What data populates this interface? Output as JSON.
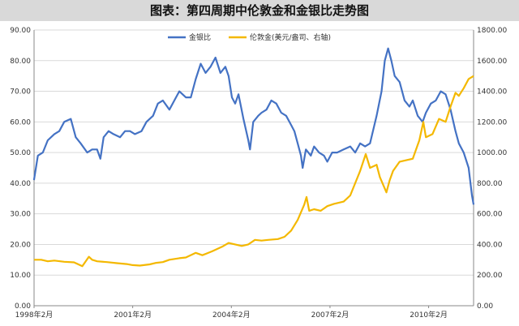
{
  "header": {
    "title": "图表：第四周期中伦敦金和金银比走势图"
  },
  "chart_data": {
    "type": "line",
    "title": "图表：第四周期中伦敦金和金银比走势图",
    "x_ticks": [
      "1998年2月",
      "2001年2月",
      "2004年2月",
      "2007年2月",
      "2010年2月"
    ],
    "x_tick_years": [
      1998.083,
      2001.083,
      2004.083,
      2007.083,
      2010.083
    ],
    "xlim": [
      1998.083,
      2011.45
    ],
    "left_axis": {
      "ticks": [
        "0.00",
        "10.00",
        "20.00",
        "30.00",
        "40.00",
        "50.00",
        "60.00",
        "70.00",
        "80.00",
        "90.00"
      ],
      "ylim": [
        0,
        90
      ]
    },
    "right_axis": {
      "ticks": [
        "0.00",
        "200.00",
        "400.00",
        "600.00",
        "800.00",
        "1000.00",
        "1200.00",
        "1400.00",
        "1600.00",
        "1800.00"
      ],
      "ylim": [
        0,
        1800
      ]
    },
    "grid": true,
    "legend_position": "top",
    "series": [
      {
        "name": "金银比",
        "axis": "left",
        "color": "#4472c4",
        "points": [
          [
            1998.08,
            41
          ],
          [
            1998.2,
            49
          ],
          [
            1998.35,
            50
          ],
          [
            1998.5,
            54
          ],
          [
            1998.7,
            56
          ],
          [
            1998.85,
            57
          ],
          [
            1999.0,
            60
          ],
          [
            1999.2,
            61
          ],
          [
            1999.35,
            55
          ],
          [
            1999.5,
            53
          ],
          [
            1999.7,
            50
          ],
          [
            1999.85,
            51
          ],
          [
            2000.0,
            51
          ],
          [
            2000.1,
            48
          ],
          [
            2000.2,
            55
          ],
          [
            2000.35,
            57
          ],
          [
            2000.5,
            56
          ],
          [
            2000.7,
            55
          ],
          [
            2000.85,
            57
          ],
          [
            2001.0,
            57
          ],
          [
            2001.15,
            56
          ],
          [
            2001.35,
            57
          ],
          [
            2001.5,
            60
          ],
          [
            2001.7,
            62
          ],
          [
            2001.85,
            66
          ],
          [
            2002.0,
            67
          ],
          [
            2002.2,
            64
          ],
          [
            2002.35,
            67
          ],
          [
            2002.5,
            70
          ],
          [
            2002.7,
            68
          ],
          [
            2002.85,
            68
          ],
          [
            2003.0,
            74
          ],
          [
            2003.15,
            79
          ],
          [
            2003.3,
            76
          ],
          [
            2003.45,
            78
          ],
          [
            2003.6,
            81
          ],
          [
            2003.75,
            76
          ],
          [
            2003.9,
            78
          ],
          [
            2004.0,
            75
          ],
          [
            2004.1,
            68
          ],
          [
            2004.2,
            66
          ],
          [
            2004.3,
            69
          ],
          [
            2004.45,
            61
          ],
          [
            2004.6,
            54
          ],
          [
            2004.65,
            51
          ],
          [
            2004.75,
            60
          ],
          [
            2004.9,
            62
          ],
          [
            2005.0,
            63
          ],
          [
            2005.15,
            64
          ],
          [
            2005.3,
            67
          ],
          [
            2005.45,
            66
          ],
          [
            2005.6,
            63
          ],
          [
            2005.75,
            62
          ],
          [
            2005.9,
            59
          ],
          [
            2006.0,
            57
          ],
          [
            2006.1,
            53
          ],
          [
            2006.2,
            49
          ],
          [
            2006.25,
            45
          ],
          [
            2006.35,
            51
          ],
          [
            2006.5,
            49
          ],
          [
            2006.6,
            52
          ],
          [
            2006.75,
            50
          ],
          [
            2006.9,
            49
          ],
          [
            2007.0,
            47
          ],
          [
            2007.15,
            50
          ],
          [
            2007.3,
            50
          ],
          [
            2007.5,
            51
          ],
          [
            2007.7,
            52
          ],
          [
            2007.85,
            50
          ],
          [
            2008.0,
            53
          ],
          [
            2008.15,
            52
          ],
          [
            2008.3,
            53
          ],
          [
            2008.5,
            62
          ],
          [
            2008.65,
            70
          ],
          [
            2008.75,
            80
          ],
          [
            2008.85,
            84
          ],
          [
            2008.95,
            80
          ],
          [
            2009.05,
            75
          ],
          [
            2009.2,
            73
          ],
          [
            2009.35,
            67
          ],
          [
            2009.5,
            65
          ],
          [
            2009.6,
            67
          ],
          [
            2009.75,
            62
          ],
          [
            2009.9,
            60
          ],
          [
            2010.0,
            63
          ],
          [
            2010.15,
            66
          ],
          [
            2010.3,
            67
          ],
          [
            2010.45,
            70
          ],
          [
            2010.6,
            69
          ],
          [
            2010.75,
            64
          ],
          [
            2010.9,
            57
          ],
          [
            2011.0,
            53
          ],
          [
            2011.15,
            50
          ],
          [
            2011.3,
            45
          ],
          [
            2011.4,
            36
          ],
          [
            2011.45,
            33
          ]
        ]
      },
      {
        "name": "伦敦金(美元/盎司、右轴)",
        "axis": "right",
        "color": "#f4b800",
        "points": [
          [
            1998.08,
            300
          ],
          [
            1998.3,
            300
          ],
          [
            1998.5,
            290
          ],
          [
            1998.7,
            295
          ],
          [
            1999.0,
            287
          ],
          [
            1999.3,
            283
          ],
          [
            1999.55,
            258
          ],
          [
            1999.75,
            320
          ],
          [
            1999.85,
            300
          ],
          [
            2000.0,
            290
          ],
          [
            2000.3,
            285
          ],
          [
            2000.6,
            278
          ],
          [
            2000.9,
            272
          ],
          [
            2001.08,
            265
          ],
          [
            2001.3,
            262
          ],
          [
            2001.6,
            270
          ],
          [
            2001.8,
            280
          ],
          [
            2002.0,
            285
          ],
          [
            2002.2,
            300
          ],
          [
            2002.5,
            310
          ],
          [
            2002.7,
            315
          ],
          [
            2003.0,
            345
          ],
          [
            2003.2,
            330
          ],
          [
            2003.5,
            355
          ],
          [
            2003.8,
            385
          ],
          [
            2004.0,
            410
          ],
          [
            2004.2,
            400
          ],
          [
            2004.4,
            390
          ],
          [
            2004.6,
            400
          ],
          [
            2004.8,
            430
          ],
          [
            2005.0,
            425
          ],
          [
            2005.2,
            430
          ],
          [
            2005.5,
            435
          ],
          [
            2005.7,
            450
          ],
          [
            2005.9,
            490
          ],
          [
            2006.1,
            560
          ],
          [
            2006.3,
            660
          ],
          [
            2006.37,
            710
          ],
          [
            2006.45,
            620
          ],
          [
            2006.6,
            630
          ],
          [
            2006.8,
            620
          ],
          [
            2007.0,
            650
          ],
          [
            2007.2,
            665
          ],
          [
            2007.5,
            680
          ],
          [
            2007.7,
            720
          ],
          [
            2007.85,
            800
          ],
          [
            2008.0,
            880
          ],
          [
            2008.17,
            990
          ],
          [
            2008.3,
            900
          ],
          [
            2008.5,
            920
          ],
          [
            2008.6,
            840
          ],
          [
            2008.8,
            740
          ],
          [
            2008.9,
            820
          ],
          [
            2009.0,
            880
          ],
          [
            2009.2,
            940
          ],
          [
            2009.4,
            950
          ],
          [
            2009.6,
            960
          ],
          [
            2009.8,
            1080
          ],
          [
            2009.92,
            1200
          ],
          [
            2010.0,
            1100
          ],
          [
            2010.2,
            1120
          ],
          [
            2010.4,
            1220
          ],
          [
            2010.6,
            1200
          ],
          [
            2010.75,
            1300
          ],
          [
            2010.9,
            1390
          ],
          [
            2011.0,
            1370
          ],
          [
            2011.15,
            1420
          ],
          [
            2011.3,
            1480
          ],
          [
            2011.45,
            1500
          ]
        ]
      }
    ]
  }
}
